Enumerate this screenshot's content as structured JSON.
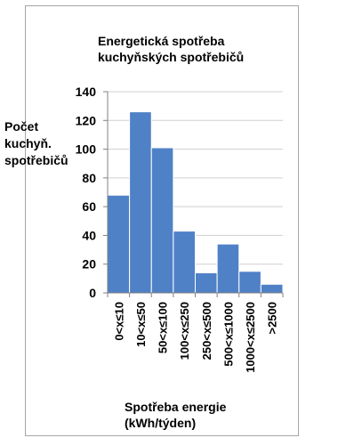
{
  "chart_data": {
    "type": "bar",
    "title_lines": [
      "Energetická spotřeba",
      "kuchyňských spotřebičů"
    ],
    "ylabel_lines": [
      "Počet",
      "kuchyň.",
      "spotřebičů"
    ],
    "xlabel_lines": [
      "Spotřeba energie",
      "(kWh/týden)"
    ],
    "categories": [
      "0<x≤10",
      "10<x≤50",
      "50<x≤100",
      "100<x≤250",
      "250<x≤500",
      "500<x≤1000",
      "1000<x≤2500",
      ">2500"
    ],
    "values": [
      68,
      126,
      101,
      43,
      14,
      34,
      15,
      6
    ],
    "yticks": [
      0,
      20,
      40,
      60,
      80,
      100,
      120,
      140
    ],
    "ylim": [
      0,
      140
    ],
    "bar_color": "#4f81c7",
    "bar_edge_color": "#ffffff",
    "grid": true,
    "grid_color": "#d0d0d0",
    "legend": "none"
  }
}
